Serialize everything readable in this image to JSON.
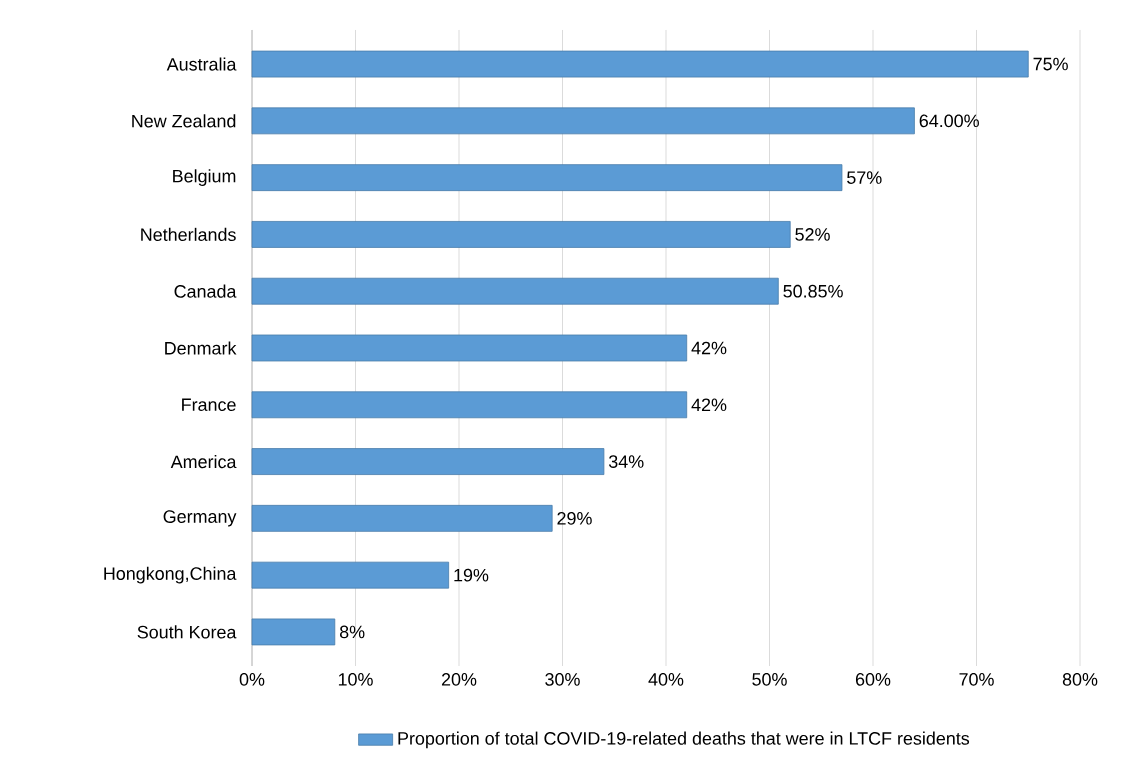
{
  "chart_data": {
    "type": "bar",
    "orientation": "horizontal",
    "categories": [
      "Australia",
      "New Zealand",
      "Belgium",
      "Netherlands",
      "Canada",
      "Denmark",
      "France",
      "America",
      "Germany",
      "Hongkong,China",
      "South Korea"
    ],
    "series": [
      {
        "name": "Proportion of total COVID-19-related deaths that were in LTCF residents",
        "color": "#5b9bd5",
        "values": [
          75,
          64.0,
          57,
          52,
          50.85,
          42,
          42,
          34,
          29,
          19,
          8
        ],
        "value_labels": [
          "75%",
          "64.00%",
          "57%",
          "52%",
          "50.85%",
          "42%",
          "42%",
          "34%",
          "29%",
          "19%",
          "8%"
        ]
      }
    ],
    "xlim": [
      0,
      80
    ],
    "xticks": [
      {
        "value": 0,
        "label": "0%"
      },
      {
        "value": 10,
        "label": "10%"
      },
      {
        "value": 20,
        "label": "20%"
      },
      {
        "value": 30,
        "label": "30%"
      },
      {
        "value": 40,
        "label": "40%"
      },
      {
        "value": 50,
        "label": "50%"
      },
      {
        "value": 60,
        "label": "60%"
      },
      {
        "value": 70,
        "label": "70%"
      },
      {
        "value": 80,
        "label": "80%"
      }
    ],
    "grid": "x",
    "legend": "bottom"
  }
}
